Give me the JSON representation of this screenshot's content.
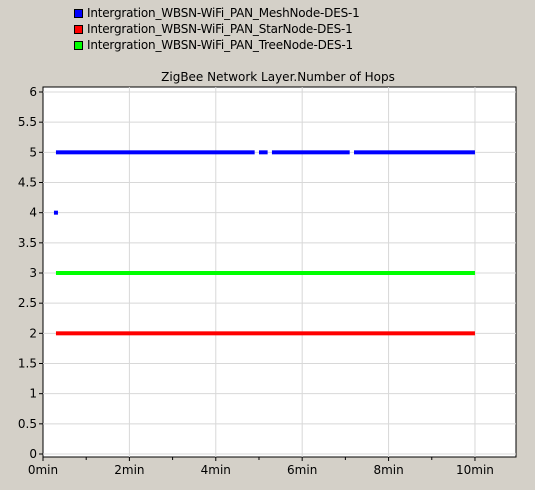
{
  "legend": [
    {
      "label": "Intergration_WBSN-WiFi_PAN_MeshNode-DES-1",
      "color": "#0000ff"
    },
    {
      "label": "Intergration_WBSN-WiFi_PAN_StarNode-DES-1",
      "color": "#ff0000"
    },
    {
      "label": "Intergration_WBSN-WiFi_PAN_TreeNode-DES-1",
      "color": "#00ff00"
    }
  ],
  "chart_data": {
    "type": "scatter",
    "title": "ZigBee Network Layer.Number of Hops",
    "xlabel": "",
    "ylabel": "",
    "xlim": [
      0,
      11
    ],
    "ylim": [
      0,
      6
    ],
    "grid": true,
    "legend_position": "top-left",
    "x_ticks": [
      "0min",
      "2min",
      "4min",
      "6min",
      "8min",
      "10min"
    ],
    "y_ticks": [
      "0",
      "0.5",
      "1",
      "1.5",
      "2",
      "2.5",
      "3",
      "3.5",
      "4",
      "4.5",
      "5",
      "5.5",
      "6"
    ],
    "series": [
      {
        "name": "Intergration_WBSN-WiFi_PAN_MeshNode-DES-1",
        "color": "#0000ff",
        "points": [
          {
            "x": 0.3,
            "y": 4
          }
        ],
        "runs": [
          {
            "x_start": 0.3,
            "x_end": 4.9,
            "y": 5
          },
          {
            "x_start": 5.0,
            "x_end": 5.2,
            "y": 5
          },
          {
            "x_start": 5.3,
            "x_end": 7.1,
            "y": 5
          },
          {
            "x_start": 7.2,
            "x_end": 10.0,
            "y": 5
          }
        ]
      },
      {
        "name": "Intergration_WBSN-WiFi_PAN_StarNode-DES-1",
        "color": "#ff0000",
        "points": [],
        "runs": [
          {
            "x_start": 0.3,
            "x_end": 10.0,
            "y": 2
          }
        ]
      },
      {
        "name": "Intergration_WBSN-WiFi_PAN_TreeNode-DES-1",
        "color": "#00ff00",
        "points": [],
        "runs": [
          {
            "x_start": 0.3,
            "x_end": 10.0,
            "y": 3
          }
        ]
      }
    ]
  }
}
